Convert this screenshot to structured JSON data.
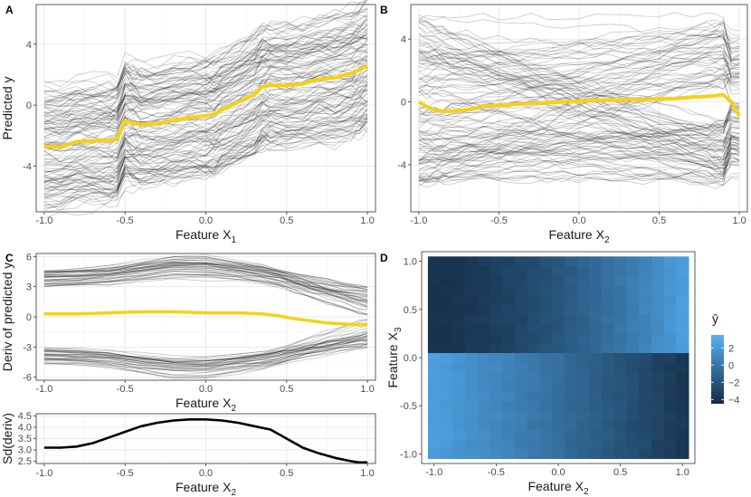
{
  "chart_data": [
    {
      "panel": "A",
      "type": "line",
      "description_lines": "ICE curves",
      "xlabel": "Feature X",
      "xlabel_sub": "1",
      "ylabel": "Predicted y",
      "xlim": [
        -1.05,
        1.05
      ],
      "ylim": [
        -7.0,
        6.6
      ],
      "xticks": [
        -1.0,
        -0.5,
        0.0,
        0.5,
        1.0
      ],
      "xtick_labels": [
        "-1.0",
        "-0.5",
        "0.0",
        "0.5",
        "1.0"
      ],
      "yticks": [
        -4,
        0,
        4
      ],
      "ytick_labels": [
        "-4",
        "0",
        "4"
      ],
      "grid": true,
      "x": [
        -1.0,
        -0.9,
        -0.8,
        -0.7,
        -0.6,
        -0.55,
        -0.5,
        -0.45,
        -0.4,
        -0.3,
        -0.2,
        -0.1,
        0.0,
        0.05,
        0.1,
        0.2,
        0.3,
        0.35,
        0.4,
        0.5,
        0.6,
        0.7,
        0.8,
        0.9,
        0.95,
        1.0
      ],
      "pdp": [
        -2.7,
        -2.75,
        -2.4,
        -2.35,
        -2.3,
        -2.25,
        -1.0,
        -1.2,
        -1.3,
        -1.2,
        -1.0,
        -0.8,
        -0.7,
        -0.6,
        -0.3,
        0.2,
        0.7,
        1.2,
        1.3,
        1.3,
        1.4,
        1.7,
        1.8,
        2.1,
        2.3,
        2.6
      ],
      "ice_count": 120,
      "ice_spread": [
        -4.2,
        4.0
      ]
    },
    {
      "panel": "B",
      "type": "line",
      "description_lines": "ICE curves",
      "xlabel": "Feature X",
      "xlabel_sub": "2",
      "ylabel": "",
      "xlim": [
        -1.05,
        1.05
      ],
      "ylim": [
        -7.0,
        6.2
      ],
      "xticks": [
        -1.0,
        -0.5,
        0.0,
        0.5,
        1.0
      ],
      "xtick_labels": [
        "-1.0",
        "-0.5",
        "0.0",
        "0.5",
        "1.0"
      ],
      "yticks": [
        -4,
        0,
        4
      ],
      "ytick_labels": [
        "-4",
        "0",
        "4"
      ],
      "grid": true,
      "x": [
        -1.0,
        -0.95,
        -0.9,
        -0.85,
        -0.8,
        -0.7,
        -0.6,
        -0.5,
        -0.4,
        -0.3,
        -0.2,
        -0.1,
        0.0,
        0.1,
        0.2,
        0.3,
        0.4,
        0.5,
        0.6,
        0.7,
        0.8,
        0.85,
        0.9,
        0.95,
        1.0
      ],
      "pdp": [
        0.0,
        -0.3,
        -0.5,
        -0.6,
        -0.6,
        -0.5,
        -0.3,
        -0.2,
        -0.15,
        -0.1,
        -0.05,
        0.0,
        0.05,
        0.1,
        0.1,
        0.15,
        0.15,
        0.2,
        0.2,
        0.3,
        0.35,
        0.4,
        0.45,
        0.0,
        -0.9
      ],
      "ice_count": 120,
      "ice_spread": [
        -5.5,
        5.5
      ]
    },
    {
      "panel": "C",
      "type": "line",
      "description_lines": "derivative ICE curves",
      "xlabel": "Feature X",
      "xlabel_sub": "2",
      "ylabel": "Deriv of predicted y",
      "xlim": [
        -1.05,
        1.05
      ],
      "ylim": [
        -6.3,
        6.3
      ],
      "xticks": [
        -1.0,
        -0.5,
        0.0,
        0.5,
        1.0
      ],
      "xtick_labels": [
        "-1.0",
        "-0.5",
        "0.0",
        "0.5",
        "1.0"
      ],
      "yticks": [
        -6,
        -3,
        0,
        3,
        6
      ],
      "ytick_labels": [
        "-6",
        "-3",
        "0",
        "3",
        "6"
      ],
      "grid": true,
      "x": [
        -1.0,
        -0.8,
        -0.6,
        -0.4,
        -0.2,
        0.0,
        0.2,
        0.35,
        0.45,
        0.55,
        0.65,
        0.75,
        0.85,
        0.95,
        1.0
      ],
      "mean_deriv": [
        0.3,
        0.3,
        0.4,
        0.5,
        0.5,
        0.4,
        0.4,
        0.3,
        0.1,
        -0.2,
        -0.4,
        -0.6,
        -0.7,
        -0.8,
        -0.8
      ],
      "ice_count": 80
    },
    {
      "panel": "C2",
      "type": "line",
      "xlabel": "Feature X",
      "xlabel_sub": "2",
      "ylabel": "Sd(deriv)",
      "xlim": [
        -1.05,
        1.05
      ],
      "ylim": [
        2.4,
        4.6
      ],
      "xticks": [
        -1.0,
        -0.5,
        0.0,
        0.5,
        1.0
      ],
      "xtick_labels": [
        "-1.0",
        "-0.5",
        "0.0",
        "0.5",
        "1.0"
      ],
      "yticks": [
        2.5,
        3.0,
        3.5,
        4.0,
        4.5
      ],
      "ytick_labels": [
        "2.5",
        "3.0",
        "3.5",
        "4.0",
        "4.5"
      ],
      "grid": true,
      "x": [
        -1.0,
        -0.9,
        -0.8,
        -0.7,
        -0.6,
        -0.5,
        -0.4,
        -0.3,
        -0.2,
        -0.1,
        0.0,
        0.1,
        0.2,
        0.3,
        0.4,
        0.5,
        0.6,
        0.7,
        0.8,
        0.9,
        0.95,
        1.0
      ],
      "values": [
        3.1,
        3.1,
        3.15,
        3.3,
        3.55,
        3.8,
        4.05,
        4.2,
        4.3,
        4.35,
        4.35,
        4.3,
        4.2,
        4.05,
        3.9,
        3.5,
        3.1,
        2.85,
        2.65,
        2.5,
        2.45,
        2.45
      ]
    },
    {
      "panel": "D",
      "type": "heatmap",
      "xlabel": "Feature X",
      "xlabel_sub": "2",
      "ylabel": "Feature X",
      "ylabel_sub": "3",
      "xlim": [
        -1.1,
        1.1
      ],
      "ylim": [
        -1.1,
        1.1
      ],
      "xticks": [
        -1.0,
        -0.5,
        0.0,
        0.5,
        1.0
      ],
      "xtick_labels": [
        "-1.0",
        "-0.5",
        "0.0",
        "0.5",
        "1.0"
      ],
      "yticks": [
        -1.0,
        -0.5,
        0.0,
        0.5,
        1.0
      ],
      "ytick_labels": [
        "-1.0",
        "-0.5",
        "0.0",
        "0.5",
        "1.0"
      ],
      "grid_cols": 21,
      "grid_rows": 21,
      "value_range": [
        -4.5,
        3.5
      ],
      "legend_title": "ŷ",
      "legend_ticks": [
        2,
        0,
        -2,
        -4
      ],
      "legend_tick_labels": [
        "2",
        "0",
        "−2",
        "−4"
      ],
      "color_low": "#132b43",
      "color_high": "#56b1f7"
    }
  ],
  "panel_labels": [
    "A",
    "B",
    "C",
    "D"
  ],
  "colors": {
    "pdp": "#f5d117",
    "ice": "#000000",
    "axis_text": "#4d4d4d"
  }
}
